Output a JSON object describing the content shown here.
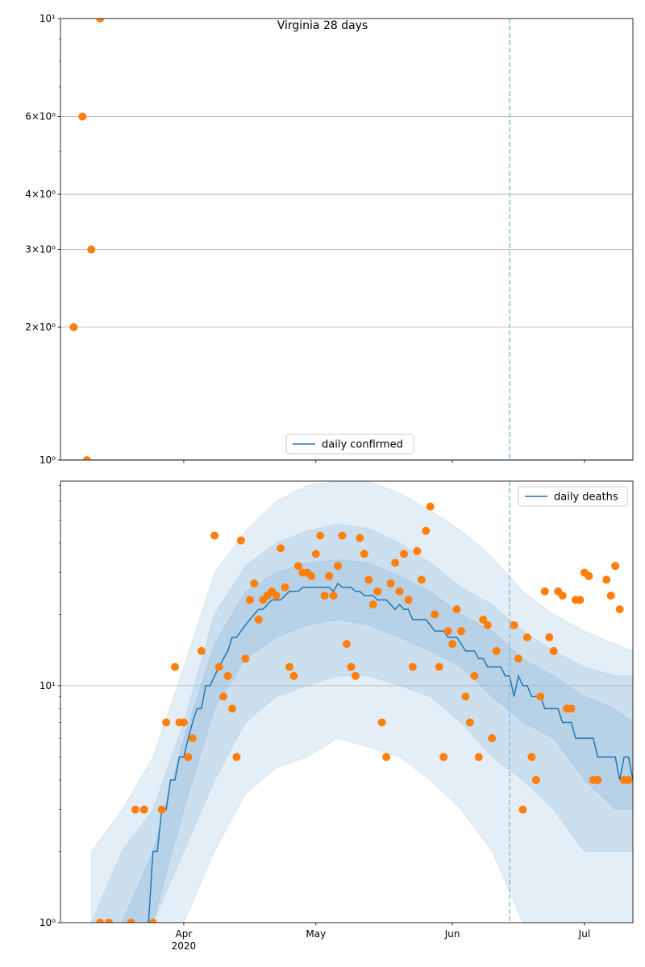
{
  "chart_data": [
    {
      "type": "line",
      "title": "Virginia 28 days",
      "xlim": [
        "2020-03-04",
        "2020-07-12"
      ],
      "ylim": [
        1,
        10
      ],
      "log_y": true,
      "yticks": [
        {
          "value": 1,
          "label": "10⁰"
        },
        {
          "value": 2,
          "label": "2×10⁰"
        },
        {
          "value": 3,
          "label": "3×10⁰"
        },
        {
          "value": 4,
          "label": "4×10⁰"
        },
        {
          "value": 6,
          "label": "6×10⁰"
        },
        {
          "value": 10,
          "label": "10¹"
        }
      ],
      "yminor_ticks": [
        5,
        7,
        8,
        9
      ],
      "grid": true,
      "legend": "lower center",
      "series": [
        {
          "name": "daily confirmed",
          "color": "#1f77b4",
          "x": [
            "2020-03-04",
            "2020-07-12"
          ],
          "values": [
            1,
            1
          ]
        }
      ],
      "points": {
        "color": "#ff7f0e",
        "x": [
          "2020-03-07",
          "2020-03-09",
          "2020-03-10",
          "2020-03-11",
          "2020-03-13"
        ],
        "values": [
          2,
          6,
          1,
          3,
          10
        ]
      },
      "vline": {
        "x": "2020-06-14",
        "color": "#8fbbd9"
      }
    },
    {
      "type": "line",
      "xlim": [
        "2020-03-04",
        "2020-07-12"
      ],
      "xticks": [
        {
          "value": "2020-04-01",
          "label": "Apr",
          "year": "2020"
        },
        {
          "value": "2020-05-01",
          "label": "May"
        },
        {
          "value": "2020-06-01",
          "label": "Jun"
        },
        {
          "value": "2020-07-01",
          "label": "Jul"
        }
      ],
      "ylim": [
        1,
        73
      ],
      "log_y": true,
      "yticks": [
        {
          "value": 1,
          "label": "10⁰"
        },
        {
          "value": 10,
          "label": "10¹"
        }
      ],
      "yminor_ticks": [
        2,
        3,
        4,
        5,
        6,
        7,
        8,
        9,
        20,
        30,
        40,
        50,
        60,
        70
      ],
      "grid": true,
      "legend": "upper right",
      "bands": {
        "color": "#1f77b4",
        "x": [
          "2020-03-11",
          "2020-03-18",
          "2020-03-25",
          "2020-04-01",
          "2020-04-08",
          "2020-04-15",
          "2020-04-22",
          "2020-04-29",
          "2020-05-06",
          "2020-05-13",
          "2020-05-20",
          "2020-05-27",
          "2020-06-03",
          "2020-06-10",
          "2020-06-17",
          "2020-06-24",
          "2020-07-01",
          "2020-07-08",
          "2020-07-12"
        ],
        "ranges": [
          {
            "lower": [
              1,
              1,
              1,
              1,
              2,
              3.5,
              4.5,
              5,
              6,
              5.5,
              5,
              4,
              3,
              2,
              1,
              1,
              1,
              1,
              1
            ],
            "upper": [
              2,
              3,
              5,
              12,
              30,
              45,
              60,
              70,
              73,
              73,
              65,
              55,
              45,
              35,
              25,
              20,
              17,
              15,
              14
            ]
          },
          {
            "lower": [
              1,
              1,
              1,
              2,
              4,
              7,
              9,
              10,
              11,
              11,
              10,
              9,
              7,
              5,
              4,
              3,
              2,
              2,
              2
            ],
            "upper": [
              1,
              2,
              3,
              7,
              20,
              32,
              40,
              45,
              48,
              46,
              40,
              33,
              26,
              22,
              17,
              14,
              12,
              11,
              11
            ]
          },
          {
            "lower": [
              1,
              1,
              1,
              3,
              8,
              13,
              16,
              18,
              19,
              18,
              16,
              14,
              12,
              9,
              7,
              6,
              4,
              3,
              3
            ],
            "upper": [
              1,
              1,
              2,
              6,
              15,
              25,
              30,
              33,
              34,
              33,
              29,
              25,
              20,
              17,
              13,
              11,
              9,
              8,
              7
            ]
          }
        ]
      },
      "series": [
        {
          "name": "daily deaths",
          "color": "#1f77b4",
          "x": [
            "2020-03-24",
            "2020-03-25",
            "2020-03-26",
            "2020-03-27",
            "2020-03-28",
            "2020-03-29",
            "2020-03-30",
            "2020-03-31",
            "2020-04-01",
            "2020-04-02",
            "2020-04-03",
            "2020-04-04",
            "2020-04-05",
            "2020-04-06",
            "2020-04-07",
            "2020-04-08",
            "2020-04-09",
            "2020-04-10",
            "2020-04-11",
            "2020-04-12",
            "2020-04-13",
            "2020-04-14",
            "2020-04-15",
            "2020-04-16",
            "2020-04-17",
            "2020-04-18",
            "2020-04-19",
            "2020-04-20",
            "2020-04-21",
            "2020-04-22",
            "2020-04-23",
            "2020-04-24",
            "2020-04-25",
            "2020-04-26",
            "2020-04-27",
            "2020-04-28",
            "2020-04-29",
            "2020-04-30",
            "2020-05-01",
            "2020-05-02",
            "2020-05-03",
            "2020-05-04",
            "2020-05-05",
            "2020-05-06",
            "2020-05-07",
            "2020-05-08",
            "2020-05-09",
            "2020-05-10",
            "2020-05-11",
            "2020-05-12",
            "2020-05-13",
            "2020-05-14",
            "2020-05-15",
            "2020-05-16",
            "2020-05-17",
            "2020-05-18",
            "2020-05-19",
            "2020-05-20",
            "2020-05-21",
            "2020-05-22",
            "2020-05-23",
            "2020-05-24",
            "2020-05-25",
            "2020-05-26",
            "2020-05-27",
            "2020-05-28",
            "2020-05-29",
            "2020-05-30",
            "2020-05-31",
            "2020-06-01",
            "2020-06-02",
            "2020-06-03",
            "2020-06-04",
            "2020-06-05",
            "2020-06-06",
            "2020-06-07",
            "2020-06-08",
            "2020-06-09",
            "2020-06-10",
            "2020-06-11",
            "2020-06-12",
            "2020-06-13",
            "2020-06-14",
            "2020-06-15",
            "2020-06-16",
            "2020-06-17",
            "2020-06-18",
            "2020-06-19",
            "2020-06-20",
            "2020-06-21",
            "2020-06-22",
            "2020-06-23",
            "2020-06-24",
            "2020-06-25",
            "2020-06-26",
            "2020-06-27",
            "2020-06-28",
            "2020-06-29",
            "2020-06-30",
            "2020-07-01",
            "2020-07-02",
            "2020-07-03",
            "2020-07-04",
            "2020-07-05",
            "2020-07-06",
            "2020-07-07",
            "2020-07-08",
            "2020-07-09",
            "2020-07-10",
            "2020-07-11",
            "2020-07-12"
          ],
          "values": [
            1,
            2,
            2,
            3,
            3,
            4,
            4,
            5,
            5,
            6,
            7,
            8,
            8,
            10,
            10,
            11,
            12,
            13,
            14,
            16,
            16,
            17,
            18,
            19,
            20,
            21,
            21,
            22,
            23,
            23,
            23,
            24,
            25,
            25,
            25,
            26,
            26,
            26,
            26,
            26,
            26,
            26,
            25,
            27,
            26,
            26,
            26,
            25,
            25,
            24,
            24,
            24,
            23,
            23,
            23,
            22,
            21,
            22,
            21,
            21,
            19,
            19,
            19,
            19,
            18,
            17,
            17,
            17,
            16,
            16,
            16,
            15,
            14,
            14,
            14,
            13,
            13,
            12,
            12,
            12,
            12,
            11,
            11,
            9,
            11,
            10,
            10,
            9,
            9,
            9,
            8,
            8,
            8,
            8,
            7,
            7,
            7,
            6,
            6,
            6,
            6,
            6,
            5,
            5,
            5,
            5,
            5,
            4,
            5,
            5,
            4
          ]
        }
      ],
      "points": {
        "color": "#ff7f0e",
        "x": [
          "2020-03-13",
          "2020-03-15",
          "2020-03-20",
          "2020-03-21",
          "2020-03-23",
          "2020-03-25",
          "2020-03-27",
          "2020-03-28",
          "2020-03-30",
          "2020-03-31",
          "2020-04-01",
          "2020-04-02",
          "2020-04-03",
          "2020-04-05",
          "2020-04-08",
          "2020-04-09",
          "2020-04-10",
          "2020-04-11",
          "2020-04-12",
          "2020-04-13",
          "2020-04-14",
          "2020-04-15",
          "2020-04-16",
          "2020-04-17",
          "2020-04-18",
          "2020-04-19",
          "2020-04-20",
          "2020-04-21",
          "2020-04-22",
          "2020-04-23",
          "2020-04-24",
          "2020-04-25",
          "2020-04-26",
          "2020-04-27",
          "2020-04-28",
          "2020-04-29",
          "2020-04-30",
          "2020-05-01",
          "2020-05-02",
          "2020-05-03",
          "2020-05-04",
          "2020-05-05",
          "2020-05-06",
          "2020-05-07",
          "2020-05-08",
          "2020-05-09",
          "2020-05-10",
          "2020-05-11",
          "2020-05-12",
          "2020-05-13",
          "2020-05-14",
          "2020-05-15",
          "2020-05-16",
          "2020-05-17",
          "2020-05-18",
          "2020-05-19",
          "2020-05-20",
          "2020-05-21",
          "2020-05-22",
          "2020-05-23",
          "2020-05-24",
          "2020-05-25",
          "2020-05-26",
          "2020-05-27",
          "2020-05-28",
          "2020-05-29",
          "2020-05-30",
          "2020-05-31",
          "2020-06-01",
          "2020-06-02",
          "2020-06-03",
          "2020-06-04",
          "2020-06-05",
          "2020-06-06",
          "2020-06-07",
          "2020-06-08",
          "2020-06-09",
          "2020-06-10",
          "2020-06-11",
          "2020-06-15",
          "2020-06-16",
          "2020-06-17",
          "2020-06-18",
          "2020-06-19",
          "2020-06-20",
          "2020-06-21",
          "2020-06-22",
          "2020-06-23",
          "2020-06-24",
          "2020-06-25",
          "2020-06-26",
          "2020-06-27",
          "2020-06-28",
          "2020-06-29",
          "2020-06-30",
          "2020-07-01",
          "2020-07-02",
          "2020-07-03",
          "2020-07-04",
          "2020-07-06",
          "2020-07-07",
          "2020-07-08",
          "2020-07-09",
          "2020-07-10",
          "2020-07-11"
        ],
        "values": [
          1,
          1,
          1,
          3,
          3,
          1,
          3,
          7,
          12,
          7,
          7,
          5,
          6,
          14,
          43,
          12,
          9,
          11,
          8,
          5,
          41,
          13,
          23,
          27,
          19,
          23,
          24,
          25,
          24,
          38,
          26,
          12,
          11,
          32,
          30,
          30,
          29,
          36,
          43,
          24,
          29,
          24,
          32,
          43,
          15,
          12,
          11,
          42,
          36,
          28,
          22,
          25,
          7,
          5,
          27,
          33,
          25,
          36,
          23,
          12,
          37,
          28,
          45,
          57,
          20,
          12,
          5,
          17,
          15,
          21,
          17,
          9,
          7,
          11,
          5,
          19,
          18,
          6,
          14,
          18,
          13,
          3,
          16,
          5,
          4,
          9,
          25,
          16,
          14,
          25,
          24,
          8,
          8,
          23,
          23,
          30,
          29,
          4,
          4,
          28,
          24,
          32,
          21,
          4,
          4
        ]
      },
      "vline": {
        "x": "2020-06-14",
        "color": "#8fbbd9"
      }
    }
  ]
}
